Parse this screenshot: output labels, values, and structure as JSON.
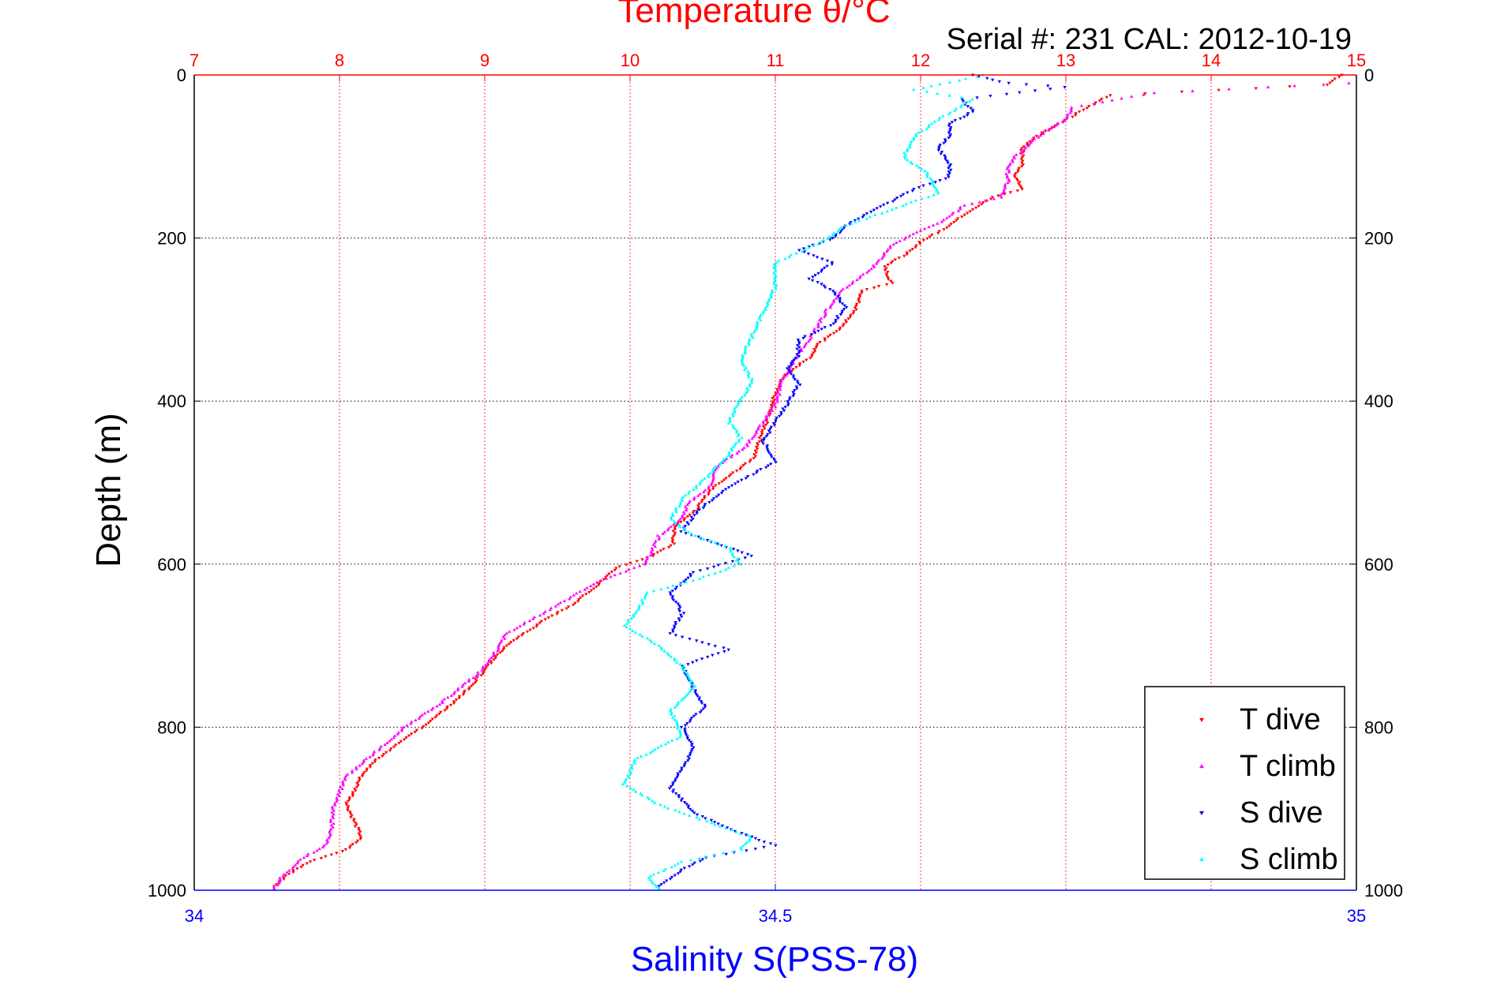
{
  "colors": {
    "temperature_axis": "#ff0000",
    "salinity_axis": "#0000ff",
    "T_dive": "#ff0000",
    "T_climb": "#ff00ff",
    "S_dive": "#0000ff",
    "S_climb": "#00ffff",
    "grid": "#000000"
  },
  "chart_data": {
    "type": "scatter",
    "title": "Temperature θ/°C",
    "subtitle": "Serial #: 231  CAL: 2012-10-19",
    "ylabel": "Depth (m)",
    "xlabel_bottom": "Salinity S(PSS-78)",
    "xlabel_top": "Temperature θ/°C",
    "y_reversed": true,
    "ylim": [
      0,
      1000
    ],
    "y_ticks": [
      "0",
      "200",
      "400",
      "600",
      "800",
      "1000"
    ],
    "x_top": {
      "lim": [
        7,
        15
      ],
      "ticks": [
        "7",
        "8",
        "9",
        "10",
        "11",
        "12",
        "13",
        "14",
        "15"
      ]
    },
    "x_bottom": {
      "lim": [
        34,
        35
      ],
      "ticks": [
        "34",
        "34.5",
        "35"
      ]
    },
    "grid": true,
    "legend_position": "bottom-right",
    "series": [
      {
        "name": "T dive",
        "axis": "top",
        "color": "#ff0000",
        "marker": "triangle-down",
        "points": [
          [
            14.9,
            0
          ],
          [
            14.8,
            12
          ],
          [
            13.3,
            25
          ],
          [
            13.1,
            45
          ],
          [
            12.95,
            60
          ],
          [
            12.8,
            75
          ],
          [
            12.7,
            90
          ],
          [
            12.7,
            110
          ],
          [
            12.65,
            125
          ],
          [
            12.7,
            140
          ],
          [
            12.5,
            150
          ],
          [
            12.35,
            165
          ],
          [
            12.2,
            185
          ],
          [
            12.0,
            205
          ],
          [
            11.9,
            220
          ],
          [
            11.75,
            235
          ],
          [
            11.8,
            255
          ],
          [
            11.6,
            265
          ],
          [
            11.55,
            290
          ],
          [
            11.45,
            310
          ],
          [
            11.3,
            330
          ],
          [
            11.25,
            345
          ],
          [
            11.05,
            370
          ],
          [
            11.0,
            390
          ],
          [
            10.95,
            420
          ],
          [
            10.9,
            445
          ],
          [
            10.85,
            470
          ],
          [
            10.7,
            490
          ],
          [
            10.55,
            510
          ],
          [
            10.45,
            535
          ],
          [
            10.3,
            555
          ],
          [
            10.3,
            575
          ],
          [
            10.15,
            590
          ],
          [
            9.9,
            605
          ],
          [
            9.75,
            630
          ],
          [
            9.6,
            650
          ],
          [
            9.4,
            670
          ],
          [
            9.15,
            700
          ],
          [
            9.0,
            730
          ],
          [
            8.85,
            760
          ],
          [
            8.65,
            790
          ],
          [
            8.45,
            815
          ],
          [
            8.25,
            840
          ],
          [
            8.15,
            860
          ],
          [
            8.1,
            880
          ],
          [
            8.05,
            895
          ],
          [
            8.1,
            915
          ],
          [
            8.15,
            935
          ],
          [
            8.05,
            950
          ],
          [
            7.8,
            965
          ],
          [
            7.65,
            980
          ],
          [
            7.55,
            995
          ]
        ]
      },
      {
        "name": "T climb",
        "axis": "top",
        "color": "#ff00ff",
        "marker": "triangle-up",
        "points": [
          [
            14.95,
            10
          ],
          [
            14.4,
            15
          ],
          [
            13.6,
            22
          ],
          [
            13.05,
            40
          ],
          [
            13.0,
            55
          ],
          [
            12.85,
            70
          ],
          [
            12.75,
            85
          ],
          [
            12.65,
            100
          ],
          [
            12.6,
            115
          ],
          [
            12.6,
            130
          ],
          [
            12.55,
            150
          ],
          [
            12.3,
            160
          ],
          [
            12.15,
            180
          ],
          [
            11.95,
            195
          ],
          [
            11.8,
            210
          ],
          [
            11.65,
            240
          ],
          [
            11.45,
            265
          ],
          [
            11.35,
            290
          ],
          [
            11.25,
            320
          ],
          [
            11.15,
            345
          ],
          [
            11.05,
            375
          ],
          [
            11.0,
            405
          ],
          [
            10.9,
            430
          ],
          [
            10.8,
            455
          ],
          [
            10.6,
            480
          ],
          [
            10.55,
            505
          ],
          [
            10.4,
            525
          ],
          [
            10.35,
            545
          ],
          [
            10.2,
            565
          ],
          [
            10.15,
            585
          ],
          [
            10.1,
            600
          ],
          [
            9.8,
            620
          ],
          [
            9.55,
            645
          ],
          [
            9.35,
            665
          ],
          [
            9.15,
            685
          ],
          [
            9.05,
            715
          ],
          [
            8.95,
            735
          ],
          [
            8.7,
            770
          ],
          [
            8.45,
            800
          ],
          [
            8.25,
            830
          ],
          [
            8.05,
            860
          ],
          [
            8.0,
            880
          ],
          [
            7.95,
            900
          ],
          [
            7.95,
            925
          ],
          [
            7.9,
            945
          ],
          [
            7.75,
            960
          ],
          [
            7.6,
            985
          ],
          [
            7.55,
            998
          ]
        ]
      },
      {
        "name": "S dive",
        "axis": "bottom",
        "color": "#0000ff",
        "marker": "triangle-down",
        "points": [
          [
            34.67,
            0
          ],
          [
            34.7,
            10
          ],
          [
            34.75,
            15
          ],
          [
            34.66,
            30
          ],
          [
            34.67,
            45
          ],
          [
            34.65,
            60
          ],
          [
            34.65,
            75
          ],
          [
            34.64,
            90
          ],
          [
            34.65,
            110
          ],
          [
            34.65,
            125
          ],
          [
            34.62,
            140
          ],
          [
            34.6,
            155
          ],
          [
            34.58,
            170
          ],
          [
            34.56,
            185
          ],
          [
            34.55,
            200
          ],
          [
            34.52,
            215
          ],
          [
            34.55,
            230
          ],
          [
            34.53,
            250
          ],
          [
            34.55,
            265
          ],
          [
            34.56,
            285
          ],
          [
            34.55,
            305
          ],
          [
            34.52,
            325
          ],
          [
            34.52,
            345
          ],
          [
            34.51,
            360
          ],
          [
            34.52,
            380
          ],
          [
            34.51,
            405
          ],
          [
            34.5,
            425
          ],
          [
            34.49,
            450
          ],
          [
            34.5,
            475
          ],
          [
            34.48,
            490
          ],
          [
            34.45,
            515
          ],
          [
            34.43,
            540
          ],
          [
            34.42,
            560
          ],
          [
            34.45,
            575
          ],
          [
            34.48,
            590
          ],
          [
            34.43,
            610
          ],
          [
            34.41,
            635
          ],
          [
            34.42,
            660
          ],
          [
            34.41,
            685
          ],
          [
            34.46,
            705
          ],
          [
            34.42,
            725
          ],
          [
            34.43,
            755
          ],
          [
            34.44,
            775
          ],
          [
            34.42,
            800
          ],
          [
            34.43,
            825
          ],
          [
            34.42,
            850
          ],
          [
            34.41,
            875
          ],
          [
            34.43,
            905
          ],
          [
            34.47,
            930
          ],
          [
            34.5,
            945
          ],
          [
            34.44,
            960
          ],
          [
            34.42,
            975
          ],
          [
            34.4,
            995
          ]
        ]
      },
      {
        "name": "S climb",
        "axis": "bottom",
        "color": "#00ffff",
        "marker": "triangle-up",
        "points": [
          [
            34.68,
            0
          ],
          [
            34.62,
            18
          ],
          [
            34.67,
            30
          ],
          [
            34.64,
            55
          ],
          [
            34.62,
            75
          ],
          [
            34.61,
            100
          ],
          [
            34.63,
            120
          ],
          [
            34.64,
            145
          ],
          [
            34.6,
            165
          ],
          [
            34.56,
            185
          ],
          [
            34.54,
            205
          ],
          [
            34.5,
            230
          ],
          [
            34.5,
            260
          ],
          [
            34.49,
            290
          ],
          [
            34.48,
            320
          ],
          [
            34.47,
            350
          ],
          [
            34.48,
            375
          ],
          [
            34.47,
            400
          ],
          [
            34.46,
            425
          ],
          [
            34.47,
            445
          ],
          [
            34.46,
            465
          ],
          [
            34.44,
            495
          ],
          [
            34.42,
            520
          ],
          [
            34.41,
            545
          ],
          [
            34.43,
            565
          ],
          [
            34.46,
            580
          ],
          [
            34.47,
            600
          ],
          [
            34.43,
            620
          ],
          [
            34.39,
            635
          ],
          [
            34.38,
            660
          ],
          [
            34.37,
            675
          ],
          [
            34.4,
            700
          ],
          [
            34.42,
            725
          ],
          [
            34.43,
            750
          ],
          [
            34.41,
            780
          ],
          [
            34.42,
            810
          ],
          [
            34.38,
            840
          ],
          [
            34.37,
            870
          ],
          [
            34.4,
            895
          ],
          [
            34.44,
            915
          ],
          [
            34.48,
            935
          ],
          [
            34.47,
            950
          ],
          [
            34.42,
            965
          ],
          [
            34.39,
            985
          ],
          [
            34.4,
            998
          ]
        ]
      }
    ]
  }
}
